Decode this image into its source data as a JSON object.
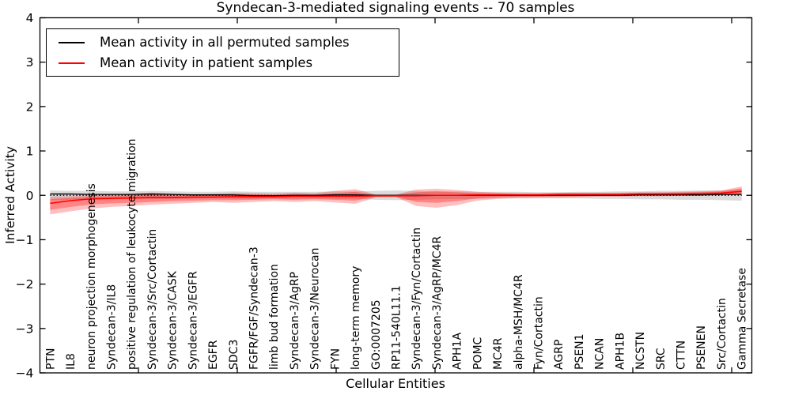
{
  "title": "Syndecan-3-mediated signaling events -- 70 samples",
  "axes": {
    "x_label": "Cellular Entities",
    "y_label": "Inferred Activity",
    "y_ticks": [
      "4",
      "3",
      "2",
      "1",
      "0",
      "−1",
      "−2",
      "−3",
      "−4"
    ]
  },
  "legend": {
    "items": [
      {
        "label": "Mean activity in all permuted samples",
        "color": "#000000"
      },
      {
        "label": "Mean activity in patient samples",
        "color": "#ff0000"
      }
    ]
  },
  "chart_data": {
    "type": "line",
    "title": "Syndecan-3-mediated signaling events -- 70 samples",
    "xlabel": "Cellular Entities",
    "ylabel": "Inferred Activity",
    "ylim": [
      -4,
      4
    ],
    "grid": false,
    "legend_position": "upper left",
    "zero_line": 0,
    "categories": [
      "PTN",
      "IL8",
      "neuron projection morphogenesis",
      "Syndecan-3/IL8",
      "positive regulation of leukocyte migration",
      "Syndecan-3/Src/Cortactin",
      "Syndecan-3/CASK",
      "Syndecan-3/EGFR",
      "EGFR",
      "SDC3",
      "FGFR/FGF/Syndecan-3",
      "limb bud formation",
      "Syndecan-3/AgRP",
      "Syndecan-3/Neurocan",
      "FYN",
      "long-term memory",
      "GO:0007205",
      "RP11-540L11.1",
      "Syndecan-3/Fyn/Cortactin",
      "Syndecan-3/AgRP/MC4R",
      "APH1A",
      "POMC",
      "MC4R",
      "alpha-MSH/MC4R",
      "Fyn/Cortactin",
      "AGRP",
      "PSEN1",
      "NCAN",
      "APH1B",
      "NCSTN",
      "SRC",
      "CTTN",
      "PSENEN",
      "Src/Cortactin",
      "Gamma Secretase"
    ],
    "series": [
      {
        "name": "Mean activity in all permuted samples",
        "color": "#000000",
        "values": [
          0.03,
          0.03,
          0.02,
          0.02,
          0.02,
          0.03,
          0.02,
          0.01,
          0.01,
          0.01,
          -0.01,
          -0.01,
          0.0,
          0.0,
          0.01,
          0.01,
          0.0,
          0.0,
          0.0,
          0.0,
          0.0,
          0.0,
          0.0,
          0.0,
          0.0,
          0.0,
          0.0,
          0.0,
          0.0,
          0.01,
          0.01,
          0.01,
          0.01,
          0.02,
          0.02
        ]
      },
      {
        "name": "Mean activity in patient samples",
        "color": "#ff0000",
        "values": [
          -0.18,
          -0.12,
          -0.08,
          -0.07,
          -0.06,
          -0.05,
          -0.05,
          -0.04,
          -0.04,
          -0.03,
          -0.03,
          -0.03,
          -0.02,
          -0.02,
          -0.02,
          -0.02,
          -0.01,
          -0.01,
          -0.01,
          0.0,
          0.0,
          0.01,
          0.01,
          0.01,
          0.01,
          0.02,
          0.02,
          0.02,
          0.02,
          0.03,
          0.03,
          0.03,
          0.04,
          0.05,
          0.09
        ]
      }
    ],
    "bands": [
      {
        "name": "permuted-range",
        "color": "#999999",
        "opacity": 0.35,
        "hi": [
          0.11,
          0.1,
          0.1,
          0.09,
          0.09,
          0.1,
          0.09,
          0.08,
          0.08,
          0.09,
          0.08,
          0.08,
          0.08,
          0.08,
          0.09,
          0.09,
          0.1,
          0.11,
          0.1,
          0.09,
          0.09,
          0.08,
          0.08,
          0.08,
          0.07,
          0.07,
          0.08,
          0.08,
          0.09,
          0.09,
          0.1,
          0.1,
          0.11,
          0.11,
          0.12
        ],
        "lo": [
          -0.11,
          -0.1,
          -0.09,
          -0.09,
          -0.08,
          -0.08,
          -0.08,
          -0.08,
          -0.07,
          -0.08,
          -0.08,
          -0.07,
          -0.08,
          -0.07,
          -0.08,
          -0.08,
          -0.1,
          -0.11,
          -0.1,
          -0.09,
          -0.08,
          -0.08,
          -0.07,
          -0.07,
          -0.07,
          -0.07,
          -0.07,
          -0.08,
          -0.08,
          -0.09,
          -0.09,
          -0.1,
          -0.1,
          -0.11,
          -0.12
        ]
      },
      {
        "name": "patient-range-outer",
        "color": "#ff0000",
        "opacity": 0.25,
        "hi": [
          -0.03,
          -0.02,
          0.0,
          0.02,
          0.04,
          0.06,
          0.04,
          0.03,
          0.04,
          0.06,
          0.05,
          0.04,
          0.06,
          0.05,
          0.1,
          0.14,
          0.02,
          0.02,
          0.13,
          0.15,
          0.12,
          0.08,
          0.06,
          0.05,
          0.05,
          0.06,
          0.06,
          0.06,
          0.06,
          0.07,
          0.07,
          0.08,
          0.09,
          0.11,
          0.2
        ],
        "lo": [
          -0.43,
          -0.36,
          -0.3,
          -0.26,
          -0.24,
          -0.21,
          -0.19,
          -0.17,
          -0.15,
          -0.17,
          -0.15,
          -0.13,
          -0.15,
          -0.13,
          -0.16,
          -0.19,
          -0.05,
          -0.04,
          -0.24,
          -0.28,
          -0.22,
          -0.12,
          -0.08,
          -0.06,
          -0.05,
          -0.05,
          -0.04,
          -0.03,
          -0.03,
          -0.02,
          -0.02,
          -0.01,
          -0.01,
          0.0,
          0.01
        ]
      },
      {
        "name": "patient-range-inner",
        "color": "#ff0000",
        "opacity": 0.3,
        "hi": [
          -0.09,
          -0.06,
          -0.03,
          -0.02,
          0.0,
          0.02,
          0.0,
          0.0,
          0.01,
          0.02,
          0.02,
          0.01,
          0.03,
          0.02,
          0.05,
          0.08,
          0.01,
          0.01,
          0.07,
          0.09,
          0.07,
          0.05,
          0.04,
          0.03,
          0.03,
          0.04,
          0.04,
          0.04,
          0.04,
          0.05,
          0.05,
          0.06,
          0.07,
          0.09,
          0.16
        ],
        "lo": [
          -0.33,
          -0.26,
          -0.21,
          -0.18,
          -0.17,
          -0.15,
          -0.13,
          -0.12,
          -0.11,
          -0.11,
          -0.1,
          -0.09,
          -0.1,
          -0.09,
          -0.1,
          -0.12,
          -0.03,
          -0.03,
          -0.15,
          -0.17,
          -0.13,
          -0.07,
          -0.04,
          -0.03,
          -0.03,
          -0.02,
          -0.02,
          -0.01,
          -0.01,
          0.0,
          0.0,
          0.01,
          0.01,
          0.02,
          0.04
        ]
      }
    ]
  }
}
